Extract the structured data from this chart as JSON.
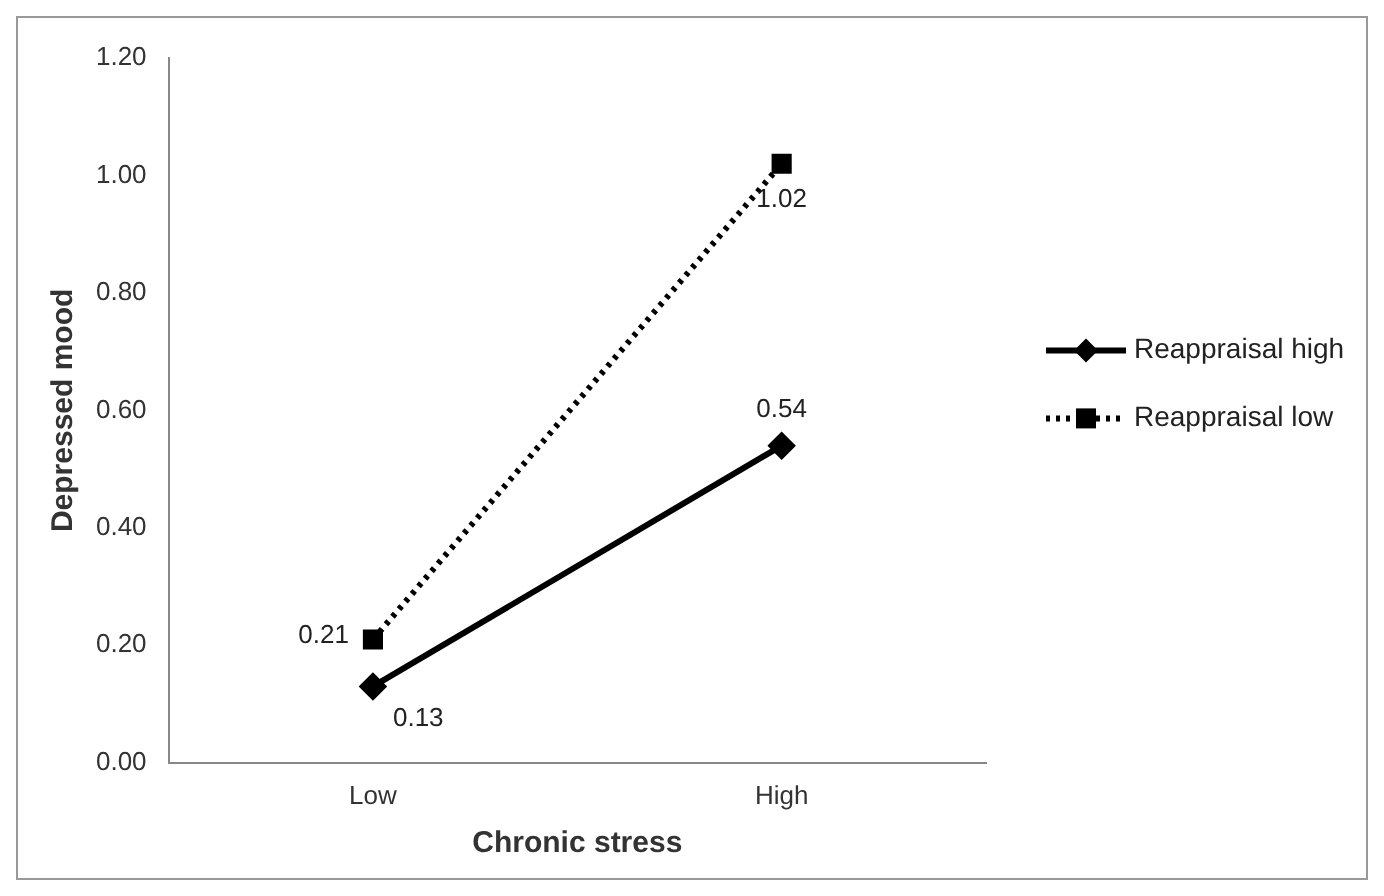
{
  "chart_data": {
    "type": "line",
    "xlabel": "Chronic stress",
    "ylabel": "Depressed mood",
    "categories": [
      "Low",
      "High"
    ],
    "series": [
      {
        "name": "Reappraisal high",
        "color": "#000000",
        "values": [
          0.13,
          0.54
        ],
        "marker": "diamond",
        "line_style": "solid"
      },
      {
        "name": "Reappraisal low",
        "color": "#000000",
        "values": [
          0.21,
          1.02
        ],
        "marker": "square",
        "line_style": "dotted"
      }
    ],
    "ylim": [
      0,
      1.2
    ],
    "yticks": [
      {
        "value": 0,
        "label": "0.00"
      },
      {
        "value": 0.2,
        "label": "0.20"
      },
      {
        "value": 0.4,
        "label": "0.40"
      },
      {
        "value": 0.6,
        "label": "0.60"
      },
      {
        "value": 0.8,
        "label": "0.80"
      },
      {
        "value": 1,
        "label": "1.00"
      },
      {
        "value": 1.2,
        "label": "1.20"
      }
    ],
    "grid": false,
    "legend": "right",
    "data_labels": true
  }
}
